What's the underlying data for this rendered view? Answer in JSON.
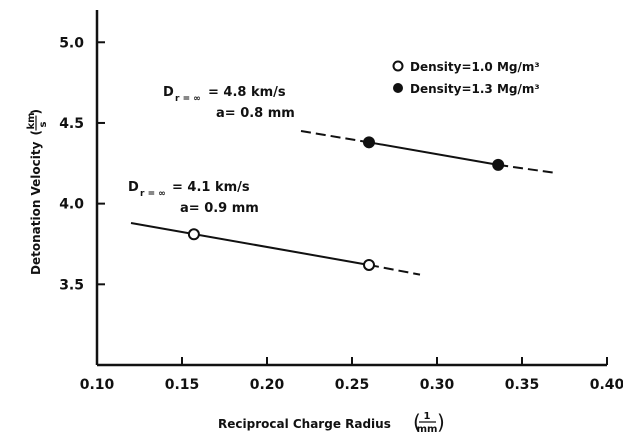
{
  "chart_data": {
    "type": "scatter",
    "xlabel": "Reciprocal Charge Radius",
    "xlabel_unit": {
      "num": "1",
      "den": "mm"
    },
    "ylabel": "Detonation Velocity",
    "ylabel_unit": {
      "num": "km",
      "den": "s"
    },
    "xlim": [
      0.1,
      0.4
    ],
    "ylim": [
      3.0,
      5.2
    ],
    "x_ticks": [
      "0.10",
      "0.15",
      "0.20",
      "0.25",
      "0.30",
      "0.35",
      "0.40"
    ],
    "y_ticks": [
      "3.5",
      "4.0",
      "4.5",
      "5.0"
    ],
    "grid": false,
    "legend_position": "top-right",
    "series": [
      {
        "name": "Density=1.0 Mg/m³",
        "marker": "open-circle",
        "points": [
          {
            "x": 0.157,
            "y": 3.81
          },
          {
            "x": 0.26,
            "y": 3.62
          }
        ],
        "solid_line": [
          {
            "x": 0.12,
            "y": 3.88
          },
          {
            "x": 0.26,
            "y": 3.62
          }
        ],
        "dashed_line": [
          {
            "x": 0.26,
            "y": 3.62
          },
          {
            "x": 0.29,
            "y": 3.56
          }
        ],
        "annotation": {
          "line1": "= 4.1 km/s",
          "line2": "a= 0.9 mm",
          "sub": "r = ∞"
        }
      },
      {
        "name": "Density=1.3 Mg/m³",
        "marker": "filled-circle",
        "points": [
          {
            "x": 0.26,
            "y": 4.38
          },
          {
            "x": 0.336,
            "y": 4.24
          }
        ],
        "dashed_line_left": [
          {
            "x": 0.22,
            "y": 4.45
          },
          {
            "x": 0.26,
            "y": 4.38
          }
        ],
        "solid_line": [
          {
            "x": 0.26,
            "y": 4.38
          },
          {
            "x": 0.336,
            "y": 4.24
          }
        ],
        "dashed_line": [
          {
            "x": 0.336,
            "y": 4.24
          },
          {
            "x": 0.37,
            "y": 4.19
          }
        ],
        "annotation": {
          "line1": "= 4.8 km/s",
          "line2": "a= 0.8 mm",
          "sub": "r = ∞"
        }
      }
    ]
  }
}
